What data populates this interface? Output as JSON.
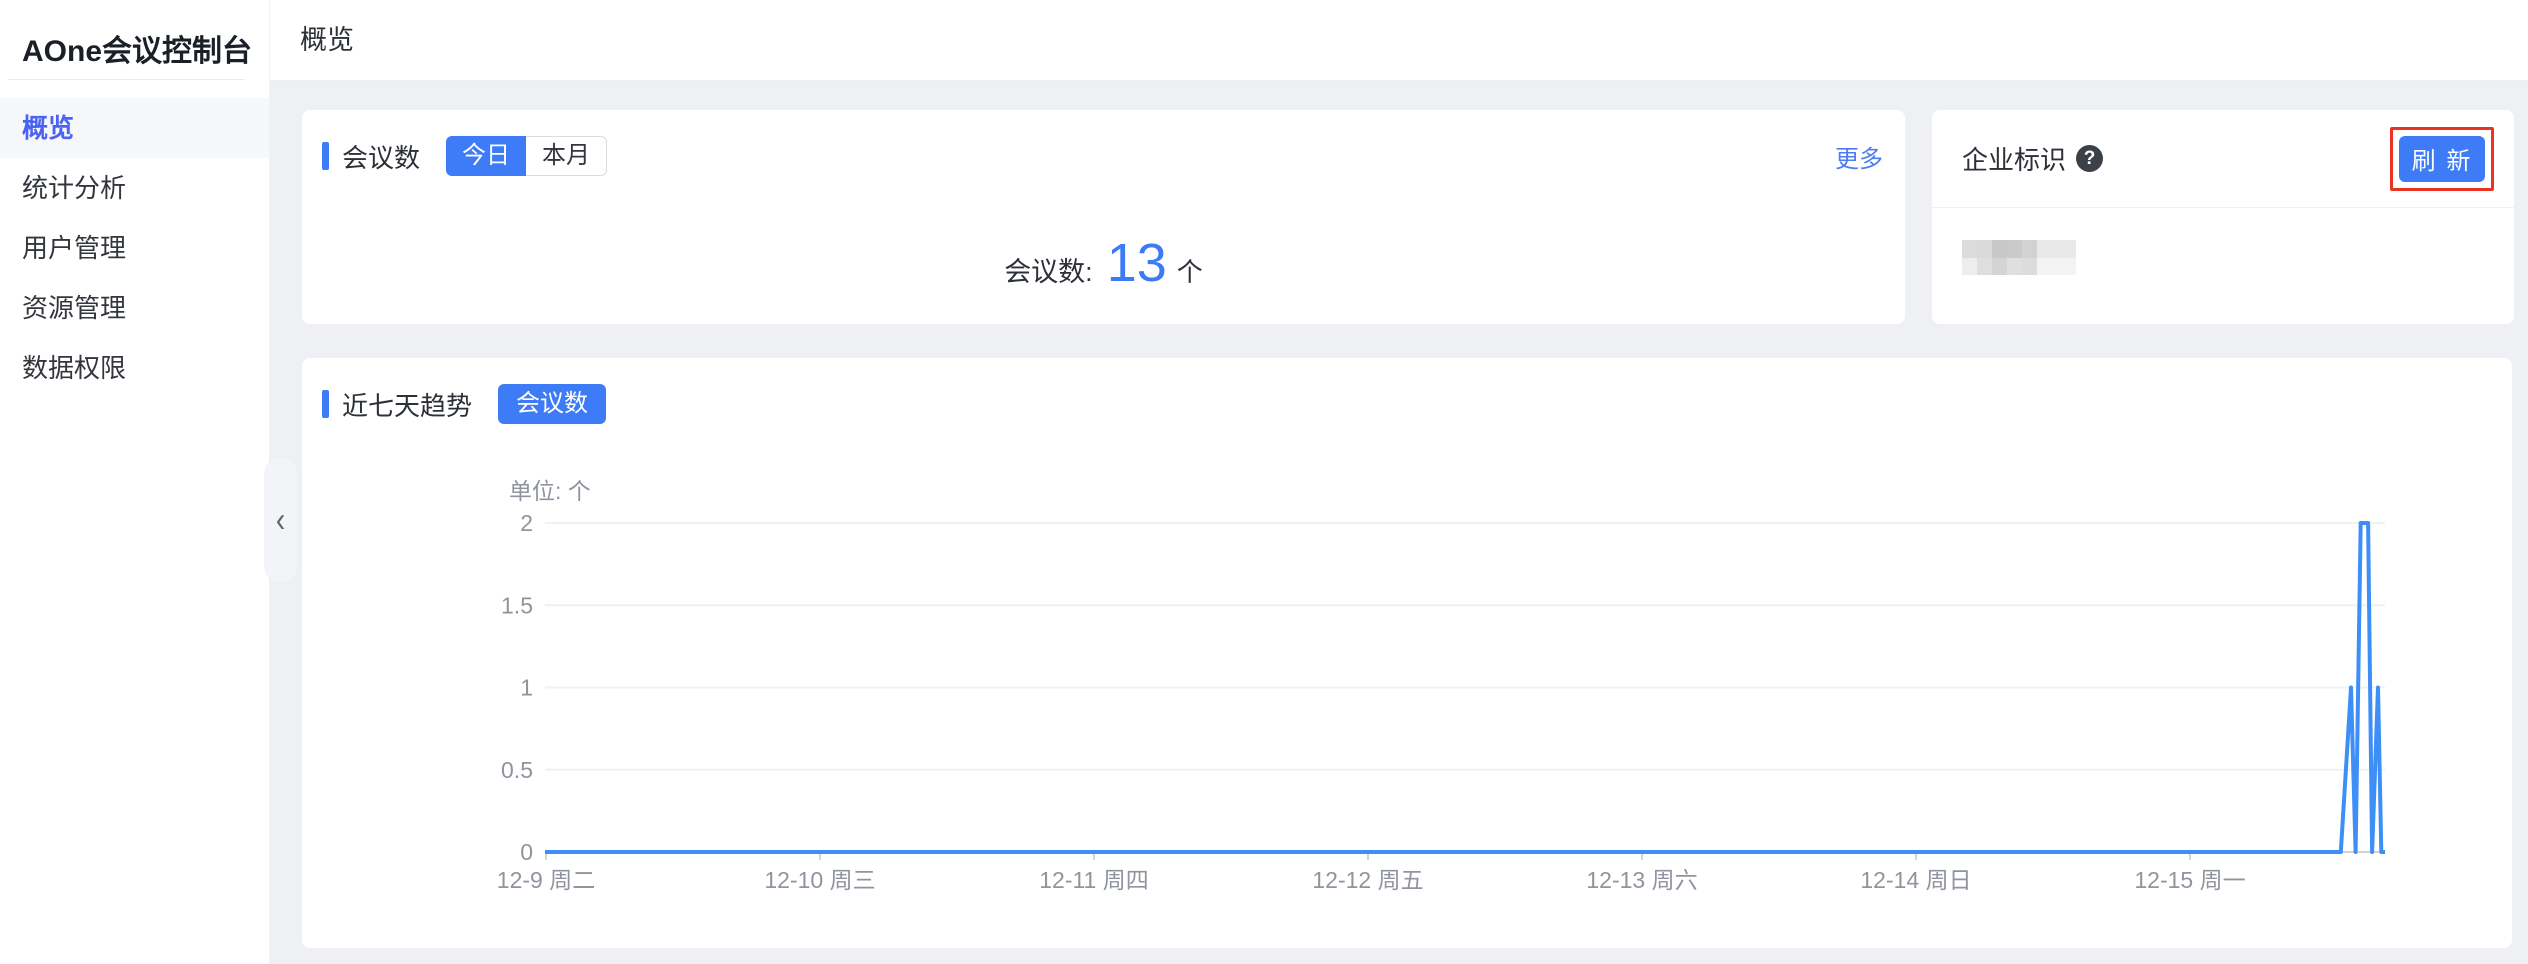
{
  "app": {
    "title": "AOne会议控制台"
  },
  "colors": {
    "accent": "#3E7BF7",
    "chart_line": "#3E8EF7",
    "sidebar_active": "#4A63F2",
    "link_blue": "#4E7BF0",
    "stat_blue": "#3D7BF5",
    "annotation_red": "#EA3323",
    "page_bg": "#EEF0F3"
  },
  "sidebar": {
    "items": [
      {
        "label": "概览",
        "active": true
      },
      {
        "label": "统计分析",
        "active": false
      },
      {
        "label": "用户管理",
        "active": false
      },
      {
        "label": "资源管理",
        "active": false
      },
      {
        "label": "数据权限",
        "active": false
      }
    ],
    "collapse_icon": "‹"
  },
  "header": {
    "title": "概览"
  },
  "meetings_card": {
    "title": "会议数",
    "tabs": [
      {
        "label": "今日",
        "active": true
      },
      {
        "label": "本月",
        "active": false
      }
    ],
    "more_label": "更多",
    "stat_label": "会议数:",
    "stat_value": "13",
    "stat_unit": "个"
  },
  "enterprise_card": {
    "title": "企业标识",
    "help_icon": "?",
    "refresh_label": "刷 新"
  },
  "trend_card": {
    "title": "近七天趋势",
    "series_button": "会议数"
  },
  "chart_data": {
    "type": "line",
    "title": "近七天趋势",
    "unit_label": "单位: 个",
    "categories": [
      "12-9 周二",
      "12-10 周三",
      "12-11 周四",
      "12-12 周五",
      "12-13 周六",
      "12-14 周日",
      "12-15 周一"
    ],
    "y_ticks": [
      0,
      0.5,
      1,
      1.5,
      2
    ],
    "ylim": [
      0,
      2
    ],
    "grid": true,
    "legend_position": "none",
    "series": [
      {
        "name": "会议数",
        "color": "#3E8EF7",
        "description": "flat at 0 for nearly all of the 7-day range, with spikes near the end of 12-15: up to 1, back to 0, up to 2 (two adjacent points), back to 0, up to 1, back to 0",
        "profile_frac_value": [
          [
            0,
            0
          ],
          [
            0.976,
            0
          ],
          [
            0.9815,
            1
          ],
          [
            0.984,
            0
          ],
          [
            0.9868,
            2
          ],
          [
            0.9908,
            2
          ],
          [
            0.993,
            0
          ],
          [
            0.9962,
            1
          ],
          [
            0.998,
            0
          ],
          [
            1,
            0
          ]
        ]
      }
    ]
  }
}
